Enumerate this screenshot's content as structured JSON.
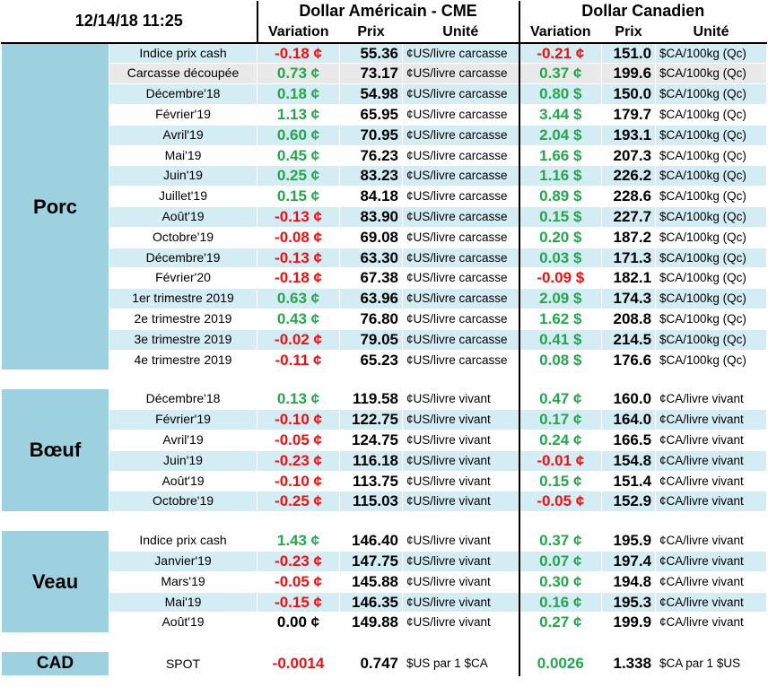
{
  "header": {
    "timestamp": "12/14/18 11:25",
    "us_title": "Dollar Américain - CME",
    "ca_title": "Dollar Canadien",
    "col_variation": "Variation",
    "col_prix": "Prix",
    "col_unite": "Unité"
  },
  "sections": [
    {
      "name": "Porc",
      "rows": [
        {
          "label": "Indice prix cash",
          "us_var": "-0.18 ¢",
          "us_price": "55.36",
          "us_unit": "¢US/livre carcasse",
          "ca_var": "-0.21 ¢",
          "ca_price": "151.0",
          "ca_unit": "$CA/100kg (Qc)"
        },
        {
          "label": "Carcasse découpée",
          "us_var": "0.73 ¢",
          "us_price": "73.17",
          "us_unit": "¢US/livre carcasse",
          "ca_var": "0.37 ¢",
          "ca_price": "199.6",
          "ca_unit": "$CA/100kg (Qc)"
        },
        {
          "label": "Décembre'18",
          "us_var": "0.18 ¢",
          "us_price": "54.98",
          "us_unit": "¢US/livre carcasse",
          "ca_var": "0.80 $",
          "ca_price": "150.0",
          "ca_unit": "$CA/100kg (Qc)"
        },
        {
          "label": "Février'19",
          "us_var": "1.13 ¢",
          "us_price": "65.95",
          "us_unit": "¢US/livre carcasse",
          "ca_var": "3.44 $",
          "ca_price": "179.7",
          "ca_unit": "$CA/100kg (Qc)"
        },
        {
          "label": "Avril'19",
          "us_var": "0.60 ¢",
          "us_price": "70.95",
          "us_unit": "¢US/livre carcasse",
          "ca_var": "2.04 $",
          "ca_price": "193.1",
          "ca_unit": "$CA/100kg (Qc)"
        },
        {
          "label": "Mai'19",
          "us_var": "0.45 ¢",
          "us_price": "76.23",
          "us_unit": "¢US/livre carcasse",
          "ca_var": "1.66 $",
          "ca_price": "207.3",
          "ca_unit": "$CA/100kg (Qc)"
        },
        {
          "label": "Juin'19",
          "us_var": "0.25 ¢",
          "us_price": "83.23",
          "us_unit": "¢US/livre carcasse",
          "ca_var": "1.16 $",
          "ca_price": "226.2",
          "ca_unit": "$CA/100kg (Qc)"
        },
        {
          "label": "Juillet'19",
          "us_var": "0.15 ¢",
          "us_price": "84.18",
          "us_unit": "¢US/livre carcasse",
          "ca_var": "0.89 $",
          "ca_price": "228.6",
          "ca_unit": "$CA/100kg (Qc)"
        },
        {
          "label": "Août'19",
          "us_var": "-0.13 ¢",
          "us_price": "83.90",
          "us_unit": "¢US/livre carcasse",
          "ca_var": "0.15 $",
          "ca_price": "227.7",
          "ca_unit": "$CA/100kg (Qc)"
        },
        {
          "label": "Octobre'19",
          "us_var": "-0.08 ¢",
          "us_price": "69.08",
          "us_unit": "¢US/livre carcasse",
          "ca_var": "0.20 $",
          "ca_price": "187.2",
          "ca_unit": "$CA/100kg (Qc)"
        },
        {
          "label": "Décembre'19",
          "us_var": "-0.13 ¢",
          "us_price": "63.30",
          "us_unit": "¢US/livre carcasse",
          "ca_var": "0.03 $",
          "ca_price": "171.3",
          "ca_unit": "$CA/100kg (Qc)"
        },
        {
          "label": "Février'20",
          "us_var": "-0.18 ¢",
          "us_price": "67.38",
          "us_unit": "¢US/livre carcasse",
          "ca_var": "-0.09 $",
          "ca_price": "182.1",
          "ca_unit": "$CA/100kg (Qc)"
        },
        {
          "label": "1er trimestre 2019",
          "us_var": "0.63 ¢",
          "us_price": "63.96",
          "us_unit": "¢US/livre carcasse",
          "ca_var": "2.09 $",
          "ca_price": "174.3",
          "ca_unit": "$CA/100kg (Qc)"
        },
        {
          "label": "2e trimestre 2019",
          "us_var": "0.43 ¢",
          "us_price": "76.80",
          "us_unit": "¢US/livre carcasse",
          "ca_var": "1.62 $",
          "ca_price": "208.8",
          "ca_unit": "$CA/100kg (Qc)"
        },
        {
          "label": "3e trimestre 2019",
          "us_var": "-0.02 ¢",
          "us_price": "79.05",
          "us_unit": "¢US/livre carcasse",
          "ca_var": "0.41 $",
          "ca_price": "214.5",
          "ca_unit": "$CA/100kg (Qc)"
        },
        {
          "label": "4e trimestre 2019",
          "us_var": "-0.11 ¢",
          "us_price": "65.23",
          "us_unit": "¢US/livre carcasse",
          "ca_var": "0.08 $",
          "ca_price": "176.6",
          "ca_unit": "$CA/100kg (Qc)"
        }
      ]
    },
    {
      "name": "Bœuf",
      "rows": [
        {
          "label": "Décembre'18",
          "us_var": "0.13 ¢",
          "us_price": "119.58",
          "us_unit": "¢US/livre vivant",
          "ca_var": "0.47 ¢",
          "ca_price": "160.0",
          "ca_unit": "¢CA/livre vivant"
        },
        {
          "label": "Février'19",
          "us_var": "-0.10 ¢",
          "us_price": "122.75",
          "us_unit": "¢US/livre vivant",
          "ca_var": "0.17 ¢",
          "ca_price": "164.0",
          "ca_unit": "¢CA/livre vivant"
        },
        {
          "label": "Avril'19",
          "us_var": "-0.05 ¢",
          "us_price": "124.75",
          "us_unit": "¢US/livre vivant",
          "ca_var": "0.24 ¢",
          "ca_price": "166.5",
          "ca_unit": "¢CA/livre vivant"
        },
        {
          "label": "Juin'19",
          "us_var": "-0.23 ¢",
          "us_price": "116.18",
          "us_unit": "¢US/livre vivant",
          "ca_var": "-0.01 ¢",
          "ca_price": "154.8",
          "ca_unit": "¢CA/livre vivant"
        },
        {
          "label": "Août'19",
          "us_var": "-0.10 ¢",
          "us_price": "113.75",
          "us_unit": "¢US/livre vivant",
          "ca_var": "0.15 ¢",
          "ca_price": "151.4",
          "ca_unit": "¢CA/livre vivant"
        },
        {
          "label": "Octobre'19",
          "us_var": "-0.25 ¢",
          "us_price": "115.03",
          "us_unit": "¢US/livre vivant",
          "ca_var": "-0.05 ¢",
          "ca_price": "152.9",
          "ca_unit": "¢CA/livre vivant"
        }
      ]
    },
    {
      "name": "Veau",
      "rows": [
        {
          "label": "Indice prix cash",
          "us_var": "1.43 ¢",
          "us_price": "146.40",
          "us_unit": "¢US/livre vivant",
          "ca_var": "0.37 ¢",
          "ca_price": "195.9",
          "ca_unit": "¢CA/livre vivant"
        },
        {
          "label": "Janvier'19",
          "us_var": "-0.23 ¢",
          "us_price": "147.75",
          "us_unit": "¢US/livre vivant",
          "ca_var": "0.07 ¢",
          "ca_price": "197.4",
          "ca_unit": "¢CA/livre vivant"
        },
        {
          "label": "Mars'19",
          "us_var": "-0.05 ¢",
          "us_price": "145.88",
          "us_unit": "¢US/livre vivant",
          "ca_var": "0.30 ¢",
          "ca_price": "194.8",
          "ca_unit": "¢CA/livre vivant"
        },
        {
          "label": "Mai'19",
          "us_var": "-0.15 ¢",
          "us_price": "146.35",
          "us_unit": "¢US/livre vivant",
          "ca_var": "0.16 ¢",
          "ca_price": "195.3",
          "ca_unit": "¢CA/livre vivant"
        },
        {
          "label": "Août'19",
          "us_var": "0.00 ¢",
          "us_price": "149.88",
          "us_unit": "¢US/livre vivant",
          "ca_var": "0.27 ¢",
          "ca_price": "199.9",
          "ca_unit": "¢CA/livre vivant"
        }
      ]
    }
  ],
  "cad": {
    "name": "CAD",
    "label": "SPOT",
    "us_var": "-0.0014",
    "us_price": "0.747",
    "us_unit": "$US par 1 $CA",
    "ca_var": "0.0026",
    "ca_price": "1.338",
    "ca_unit": "$CA par 1 $US"
  },
  "colors": {
    "positive": "#22a84a",
    "negative": "#ee1111",
    "section_bg": "#9dd1df",
    "row_light_blue": "#d4ecf4"
  }
}
